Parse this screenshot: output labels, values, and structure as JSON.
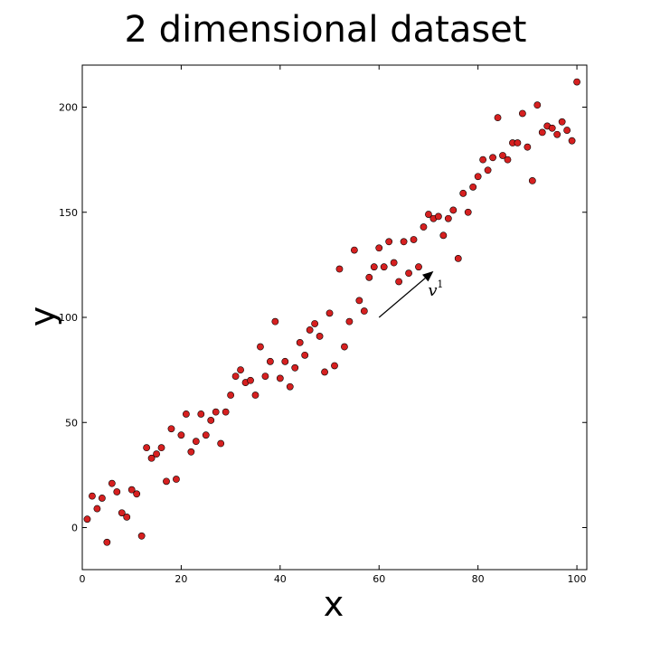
{
  "chart_data": {
    "type": "scatter",
    "title": "2 dimensional dataset",
    "xlabel": "x",
    "ylabel": "y",
    "xlim": [
      0,
      102
    ],
    "ylim": [
      -20,
      220
    ],
    "xticks": [
      0,
      20,
      40,
      60,
      80,
      100
    ],
    "yticks": [
      0,
      50,
      100,
      150,
      200
    ],
    "grid": false,
    "marker_color": "#d62020",
    "marker_edge_color": "#000000",
    "points": [
      [
        1,
        4
      ],
      [
        2,
        15
      ],
      [
        3,
        9
      ],
      [
        4,
        14
      ],
      [
        5,
        -7
      ],
      [
        6,
        21
      ],
      [
        7,
        17
      ],
      [
        8,
        7
      ],
      [
        9,
        5
      ],
      [
        10,
        18
      ],
      [
        11,
        16
      ],
      [
        12,
        -4
      ],
      [
        13,
        38
      ],
      [
        14,
        33
      ],
      [
        15,
        35
      ],
      [
        16,
        38
      ],
      [
        17,
        22
      ],
      [
        18,
        47
      ],
      [
        19,
        23
      ],
      [
        20,
        44
      ],
      [
        21,
        54
      ],
      [
        22,
        36
      ],
      [
        23,
        41
      ],
      [
        24,
        54
      ],
      [
        25,
        44
      ],
      [
        26,
        51
      ],
      [
        27,
        55
      ],
      [
        28,
        40
      ],
      [
        29,
        55
      ],
      [
        30,
        63
      ],
      [
        31,
        72
      ],
      [
        32,
        75
      ],
      [
        33,
        69
      ],
      [
        34,
        70
      ],
      [
        35,
        63
      ],
      [
        36,
        86
      ],
      [
        37,
        72
      ],
      [
        38,
        79
      ],
      [
        39,
        98
      ],
      [
        40,
        71
      ],
      [
        41,
        79
      ],
      [
        42,
        67
      ],
      [
        43,
        76
      ],
      [
        44,
        88
      ],
      [
        45,
        82
      ],
      [
        46,
        94
      ],
      [
        47,
        97
      ],
      [
        48,
        91
      ],
      [
        49,
        74
      ],
      [
        50,
        102
      ],
      [
        51,
        77
      ],
      [
        52,
        123
      ],
      [
        53,
        86
      ],
      [
        54,
        98
      ],
      [
        55,
        132
      ],
      [
        56,
        108
      ],
      [
        57,
        103
      ],
      [
        58,
        119
      ],
      [
        59,
        124
      ],
      [
        60,
        133
      ],
      [
        61,
        124
      ],
      [
        62,
        136
      ],
      [
        63,
        126
      ],
      [
        64,
        117
      ],
      [
        65,
        136
      ],
      [
        66,
        121
      ],
      [
        67,
        137
      ],
      [
        68,
        124
      ],
      [
        69,
        143
      ],
      [
        70,
        149
      ],
      [
        71,
        147
      ],
      [
        72,
        148
      ],
      [
        73,
        139
      ],
      [
        74,
        147
      ],
      [
        75,
        151
      ],
      [
        76,
        128
      ],
      [
        77,
        159
      ],
      [
        78,
        150
      ],
      [
        79,
        162
      ],
      [
        80,
        167
      ],
      [
        81,
        175
      ],
      [
        82,
        170
      ],
      [
        83,
        176
      ],
      [
        84,
        195
      ],
      [
        85,
        177
      ],
      [
        86,
        175
      ],
      [
        87,
        183
      ],
      [
        88,
        183
      ],
      [
        89,
        197
      ],
      [
        90,
        181
      ],
      [
        91,
        165
      ],
      [
        92,
        201
      ],
      [
        93,
        188
      ],
      [
        94,
        191
      ],
      [
        95,
        190
      ],
      [
        96,
        187
      ],
      [
        97,
        193
      ],
      [
        98,
        189
      ],
      [
        99,
        184
      ],
      [
        100,
        212
      ]
    ],
    "annotations": [
      {
        "type": "arrow",
        "from": [
          60,
          100
        ],
        "to": [
          71,
          122
        ],
        "label": "v",
        "label_superscript": "1"
      }
    ]
  }
}
